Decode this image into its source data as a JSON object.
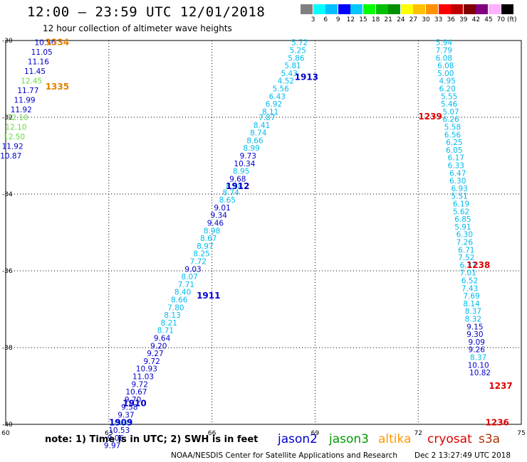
{
  "header": {
    "title": "12:00 – 23:59 UTC 12/01/2018",
    "subtitle": "12 hour collection of altimeter wave heights"
  },
  "colorbar": {
    "colors": [
      "#808080",
      "#00ffff",
      "#00bfff",
      "#0000ff",
      "#00c8ff",
      "#00ff00",
      "#00c000",
      "#009000",
      "#ffff00",
      "#ffc000",
      "#ff9000",
      "#ff0000",
      "#c00000",
      "#800000",
      "#800080",
      "#ffb0ff",
      "#000000"
    ],
    "labels": [
      "3",
      "6",
      "9",
      "12",
      "15",
      "18",
      "21",
      "24",
      "27",
      "30",
      "33",
      "36",
      "39",
      "42",
      "45",
      "70 (ft)"
    ]
  },
  "axes": {
    "x_ticks": [
      "60",
      "63",
      "66",
      "69",
      "72",
      "75"
    ],
    "y_ticks": [
      "-30",
      "-32",
      "-34",
      "-36",
      "-38",
      "-40"
    ]
  },
  "passes": [
    {
      "label": "1334",
      "color": "#e08000",
      "lon": 61.5,
      "lat": -30.05
    },
    {
      "label": "1335",
      "color": "#e08000",
      "lon": 61.5,
      "lat": -31.2
    },
    {
      "label": "1913",
      "color": "#0000cc",
      "lon": 68.75,
      "lat": -30.95
    },
    {
      "label": "1912",
      "color": "#0000cc",
      "lon": 66.75,
      "lat": -33.8
    },
    {
      "label": "1911",
      "color": "#0000cc",
      "lon": 65.9,
      "lat": -36.65
    },
    {
      "label": "1910",
      "color": "#0000cc",
      "lon": 63.75,
      "lat": -39.45
    },
    {
      "label": "1909",
      "color": "#0000cc",
      "lon": 63.35,
      "lat": -39.95
    },
    {
      "label": "1239",
      "color": "#dd0000",
      "lon": 72.35,
      "lat": -31.98
    },
    {
      "label": "1238",
      "color": "#dd0000",
      "lon": 73.75,
      "lat": -35.85
    },
    {
      "label": "1237",
      "color": "#dd0000",
      "lon": 74.4,
      "lat": -39.0
    },
    {
      "label": "1236",
      "color": "#dd0000",
      "lon": 74.3,
      "lat": -39.95
    }
  ],
  "chart_data": {
    "type": "map",
    "x_range": [
      60,
      75
    ],
    "y_range": [
      -40,
      -30
    ],
    "units": "ft",
    "tracks": [
      {
        "name": "1334/1335",
        "values": [
          {
            "v": "10.50",
            "c": "#0000cc",
            "lon": 61.15,
            "lat": -30.05
          },
          {
            "v": "11.05",
            "c": "#0000cc",
            "lon": 61.05,
            "lat": -30.3
          },
          {
            "v": "11.16",
            "c": "#0000cc",
            "lon": 60.95,
            "lat": -30.55
          },
          {
            "v": "11.45",
            "c": "#0000cc",
            "lon": 60.85,
            "lat": -30.8
          },
          {
            "v": "12.45",
            "c": "#66dd44",
            "lon": 60.75,
            "lat": -31.05
          },
          {
            "v": "11.77",
            "c": "#0000cc",
            "lon": 60.65,
            "lat": -31.3
          },
          {
            "v": "11.99",
            "c": "#0000cc",
            "lon": 60.55,
            "lat": -31.55
          },
          {
            "v": "11.92",
            "c": "#0000cc",
            "lon": 60.45,
            "lat": -31.8
          },
          {
            "v": "12.10",
            "c": "#66dd44",
            "lon": 60.35,
            "lat": -32.0
          },
          {
            "v": "12.10",
            "c": "#66dd44",
            "lon": 60.3,
            "lat": -32.25
          },
          {
            "v": "12.50",
            "c": "#66dd44",
            "lon": 60.25,
            "lat": -32.5
          },
          {
            "v": "11.92",
            "c": "#0000cc",
            "lon": 60.2,
            "lat": -32.75
          },
          {
            "v": "10.87",
            "c": "#0000cc",
            "lon": 60.15,
            "lat": -33.0
          }
        ]
      },
      {
        "name": "1909-1913",
        "values": [
          {
            "v": "5.72",
            "c": "#00bbee",
            "lon": 68.55,
            "lat": -30.05
          },
          {
            "v": "5.25",
            "c": "#00bbee",
            "lon": 68.5,
            "lat": -30.25
          },
          {
            "v": "5.86",
            "c": "#00bbee",
            "lon": 68.45,
            "lat": -30.45
          },
          {
            "v": "5.81",
            "c": "#00bbee",
            "lon": 68.35,
            "lat": -30.65
          },
          {
            "v": "5.43",
            "c": "#00bbee",
            "lon": 68.25,
            "lat": -30.85
          },
          {
            "v": "4.52",
            "c": "#00bbee",
            "lon": 68.15,
            "lat": -31.05
          },
          {
            "v": "5.56",
            "c": "#00bbee",
            "lon": 68.0,
            "lat": -31.25
          },
          {
            "v": "6.43",
            "c": "#00bbee",
            "lon": 67.9,
            "lat": -31.45
          },
          {
            "v": "6.92",
            "c": "#00bbee",
            "lon": 67.8,
            "lat": -31.65
          },
          {
            "v": "8.11",
            "c": "#00bbee",
            "lon": 67.7,
            "lat": -31.85
          },
          {
            "v": "7.87",
            "c": "#00bbee",
            "lon": 67.6,
            "lat": -32.0
          },
          {
            "v": "8.41",
            "c": "#00bbee",
            "lon": 67.45,
            "lat": -32.2
          },
          {
            "v": "8.74",
            "c": "#00bbee",
            "lon": 67.35,
            "lat": -32.4
          },
          {
            "v": "8.66",
            "c": "#00bbee",
            "lon": 67.25,
            "lat": -32.6
          },
          {
            "v": "8.99",
            "c": "#00bbee",
            "lon": 67.15,
            "lat": -32.8
          },
          {
            "v": "9.73",
            "c": "#0000cc",
            "lon": 67.05,
            "lat": -33.0
          },
          {
            "v": "10.34",
            "c": "#0000cc",
            "lon": 66.95,
            "lat": -33.2
          },
          {
            "v": "8.95",
            "c": "#00bbee",
            "lon": 66.85,
            "lat": -33.4
          },
          {
            "v": "9.68",
            "c": "#0000cc",
            "lon": 66.75,
            "lat": -33.6
          },
          {
            "v": "8.58",
            "c": "#00bbee",
            "lon": 66.65,
            "lat": -33.8
          },
          {
            "v": "8.74",
            "c": "#00bbee",
            "lon": 66.55,
            "lat": -33.95
          },
          {
            "v": "8.65",
            "c": "#00bbee",
            "lon": 66.45,
            "lat": -34.15
          },
          {
            "v": "9.01",
            "c": "#0000cc",
            "lon": 66.3,
            "lat": -34.35
          },
          {
            "v": "9.34",
            "c": "#0000cc",
            "lon": 66.2,
            "lat": -34.55
          },
          {
            "v": "9.46",
            "c": "#0000cc",
            "lon": 66.1,
            "lat": -34.75
          },
          {
            "v": "8.98",
            "c": "#00bbee",
            "lon": 66.0,
            "lat": -34.95
          },
          {
            "v": "8.67",
            "c": "#00bbee",
            "lon": 65.9,
            "lat": -35.15
          },
          {
            "v": "8.97",
            "c": "#00bbee",
            "lon": 65.8,
            "lat": -35.35
          },
          {
            "v": "8.25",
            "c": "#00bbee",
            "lon": 65.7,
            "lat": -35.55
          },
          {
            "v": "7.72",
            "c": "#00bbee",
            "lon": 65.6,
            "lat": -35.75
          },
          {
            "v": "9.03",
            "c": "#0000cc",
            "lon": 65.45,
            "lat": -35.95
          },
          {
            "v": "8.07",
            "c": "#00bbee",
            "lon": 65.35,
            "lat": -36.15
          },
          {
            "v": "7.71",
            "c": "#00bbee",
            "lon": 65.25,
            "lat": -36.35
          },
          {
            "v": "8.40",
            "c": "#00bbee",
            "lon": 65.15,
            "lat": -36.55
          },
          {
            "v": "8.66",
            "c": "#00bbee",
            "lon": 65.05,
            "lat": -36.75
          },
          {
            "v": "7.80",
            "c": "#00bbee",
            "lon": 64.95,
            "lat": -36.95
          },
          {
            "v": "8.13",
            "c": "#00bbee",
            "lon": 64.85,
            "lat": -37.15
          },
          {
            "v": "8.21",
            "c": "#00bbee",
            "lon": 64.75,
            "lat": -37.35
          },
          {
            "v": "8.71",
            "c": "#00bbee",
            "lon": 64.65,
            "lat": -37.55
          },
          {
            "v": "9.64",
            "c": "#0000cc",
            "lon": 64.55,
            "lat": -37.75
          },
          {
            "v": "9.20",
            "c": "#0000cc",
            "lon": 64.45,
            "lat": -37.95
          },
          {
            "v": "9.27",
            "c": "#0000cc",
            "lon": 64.35,
            "lat": -38.15
          },
          {
            "v": "9.72",
            "c": "#0000cc",
            "lon": 64.25,
            "lat": -38.35
          },
          {
            "v": "10.93",
            "c": "#0000cc",
            "lon": 64.1,
            "lat": -38.55
          },
          {
            "v": "11.03",
            "c": "#0000cc",
            "lon": 64.0,
            "lat": -38.75
          },
          {
            "v": "9.72",
            "c": "#0000cc",
            "lon": 63.9,
            "lat": -38.95
          },
          {
            "v": "10.67",
            "c": "#0000cc",
            "lon": 63.8,
            "lat": -39.15
          },
          {
            "v": "9.70",
            "c": "#0000cc",
            "lon": 63.7,
            "lat": -39.35
          },
          {
            "v": "9.58",
            "c": "#0000cc",
            "lon": 63.6,
            "lat": -39.55
          },
          {
            "v": "9.37",
            "c": "#0000cc",
            "lon": 63.5,
            "lat": -39.75
          },
          {
            "v": "8.88",
            "c": "#00bbee",
            "lon": 63.4,
            "lat": -39.95
          },
          {
            "v": "10.53",
            "c": "#0000cc",
            "lon": 63.3,
            "lat": -40.15
          },
          {
            "v": "9.06",
            "c": "#0000cc",
            "lon": 63.2,
            "lat": -40.35
          },
          {
            "v": "9.97",
            "c": "#0000cc",
            "lon": 63.1,
            "lat": -40.55
          }
        ]
      },
      {
        "name": "1236-1239",
        "values": [
          {
            "v": "5.94",
            "c": "#00bbee",
            "lon": 72.75,
            "lat": -30.05
          },
          {
            "v": "7.79",
            "c": "#00bbee",
            "lon": 72.75,
            "lat": -30.25
          },
          {
            "v": "6.08",
            "c": "#00bbee",
            "lon": 72.75,
            "lat": -30.45
          },
          {
            "v": "6.08",
            "c": "#00bbee",
            "lon": 72.8,
            "lat": -30.65
          },
          {
            "v": "5.00",
            "c": "#00bbee",
            "lon": 72.8,
            "lat": -30.85
          },
          {
            "v": "4.95",
            "c": "#00bbee",
            "lon": 72.85,
            "lat": -31.05
          },
          {
            "v": "6.20",
            "c": "#00bbee",
            "lon": 72.85,
            "lat": -31.25
          },
          {
            "v": "5.55",
            "c": "#00bbee",
            "lon": 72.9,
            "lat": -31.45
          },
          {
            "v": "5.46",
            "c": "#00bbee",
            "lon": 72.9,
            "lat": -31.65
          },
          {
            "v": "5.07",
            "c": "#00bbee",
            "lon": 72.95,
            "lat": -31.85
          },
          {
            "v": "6.26",
            "c": "#00bbee",
            "lon": 72.95,
            "lat": -32.05
          },
          {
            "v": "5.58",
            "c": "#00bbee",
            "lon": 73.0,
            "lat": -32.25
          },
          {
            "v": "6.56",
            "c": "#00bbee",
            "lon": 73.0,
            "lat": -32.45
          },
          {
            "v": "6.25",
            "c": "#00bbee",
            "lon": 73.05,
            "lat": -32.65
          },
          {
            "v": "6.05",
            "c": "#00bbee",
            "lon": 73.05,
            "lat": -32.85
          },
          {
            "v": "6.17",
            "c": "#00bbee",
            "lon": 73.1,
            "lat": -33.05
          },
          {
            "v": "6.33",
            "c": "#00bbee",
            "lon": 73.1,
            "lat": -33.25
          },
          {
            "v": "6.47",
            "c": "#00bbee",
            "lon": 73.15,
            "lat": -33.45
          },
          {
            "v": "6.30",
            "c": "#00bbee",
            "lon": 73.15,
            "lat": -33.65
          },
          {
            "v": "6.93",
            "c": "#00bbee",
            "lon": 73.2,
            "lat": -33.85
          },
          {
            "v": "5.51",
            "c": "#00bbee",
            "lon": 73.2,
            "lat": -34.05
          },
          {
            "v": "6.19",
            "c": "#00bbee",
            "lon": 73.25,
            "lat": -34.25
          },
          {
            "v": "5.62",
            "c": "#00bbee",
            "lon": 73.25,
            "lat": -34.45
          },
          {
            "v": "6.85",
            "c": "#00bbee",
            "lon": 73.3,
            "lat": -34.65
          },
          {
            "v": "5.91",
            "c": "#00bbee",
            "lon": 73.3,
            "lat": -34.85
          },
          {
            "v": "6.30",
            "c": "#00bbee",
            "lon": 73.35,
            "lat": -35.05
          },
          {
            "v": "7.26",
            "c": "#00bbee",
            "lon": 73.35,
            "lat": -35.25
          },
          {
            "v": "6.71",
            "c": "#00bbee",
            "lon": 73.4,
            "lat": -35.45
          },
          {
            "v": "7.52",
            "c": "#00bbee",
            "lon": 73.4,
            "lat": -35.65
          },
          {
            "v": "6.37",
            "c": "#00bbee",
            "lon": 73.45,
            "lat": -35.85
          },
          {
            "v": "7.01",
            "c": "#00bbee",
            "lon": 73.45,
            "lat": -36.05
          },
          {
            "v": "6.52",
            "c": "#00bbee",
            "lon": 73.5,
            "lat": -36.25
          },
          {
            "v": "7.43",
            "c": "#00bbee",
            "lon": 73.5,
            "lat": -36.45
          },
          {
            "v": "7.69",
            "c": "#00bbee",
            "lon": 73.55,
            "lat": -36.65
          },
          {
            "v": "8.14",
            "c": "#00bbee",
            "lon": 73.55,
            "lat": -36.85
          },
          {
            "v": "8.37",
            "c": "#00bbee",
            "lon": 73.6,
            "lat": -37.05
          },
          {
            "v": "8.32",
            "c": "#00bbee",
            "lon": 73.6,
            "lat": -37.25
          },
          {
            "v": "9.15",
            "c": "#0000cc",
            "lon": 73.65,
            "lat": -37.45
          },
          {
            "v": "9.30",
            "c": "#0000cc",
            "lon": 73.65,
            "lat": -37.65
          },
          {
            "v": "9.09",
            "c": "#0000cc",
            "lon": 73.7,
            "lat": -37.85
          },
          {
            "v": "9.26",
            "c": "#0000cc",
            "lon": 73.7,
            "lat": -38.05
          },
          {
            "v": "8.37",
            "c": "#00bbee",
            "lon": 73.75,
            "lat": -38.25
          },
          {
            "v": "10.10",
            "c": "#0000cc",
            "lon": 73.75,
            "lat": -38.45
          },
          {
            "v": "10.82",
            "c": "#0000cc",
            "lon": 73.8,
            "lat": -38.65
          }
        ]
      }
    ]
  },
  "footer": {
    "note": "note:  1) Time is in UTC;  2) SWH is in feet",
    "satellites": [
      {
        "name": "jason2",
        "color": "#0000cc"
      },
      {
        "name": "jason3",
        "color": "#009900"
      },
      {
        "name": "altika",
        "color": "#ff9900"
      },
      {
        "name": "cryosat",
        "color": "#dd0000"
      },
      {
        "name": "s3a",
        "color": "#aa3300"
      }
    ],
    "credit": "NOAA/NESDIS Center for Satellite Applications and Research",
    "timestamp": "Dec  2 13:27:49 UTC 2018"
  }
}
